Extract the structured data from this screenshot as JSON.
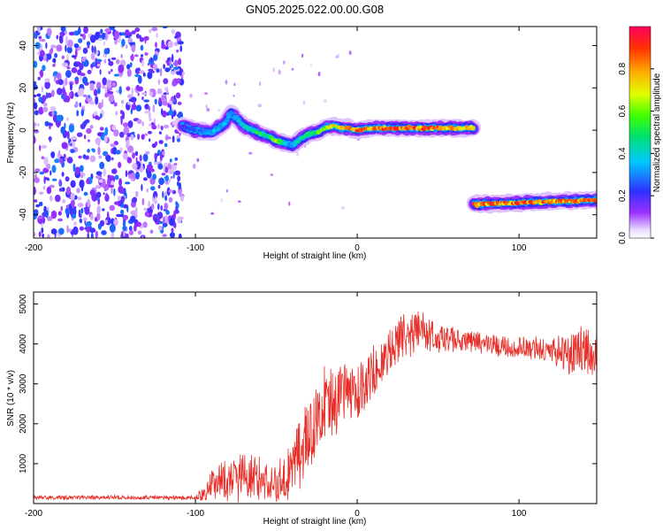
{
  "title": "GN05.2025.022.00.00.G08",
  "chart_data": [
    {
      "type": "heatmap",
      "xlabel": "Height of straight line (km)",
      "ylabel": "Frequency (Hz)",
      "xlim": [
        -200,
        148
      ],
      "ylim": [
        -51,
        49
      ],
      "x_ticks": [
        -200,
        -100,
        0,
        100
      ],
      "y_ticks": [
        -40,
        -20,
        0,
        20,
        40
      ],
      "colorbar": {
        "label": "Normalized spectral amplitude",
        "range": [
          0,
          1
        ],
        "ticks": [
          0.0,
          0.2,
          0.4,
          0.6,
          0.8
        ],
        "colormap": "rainbow (white-violet-blue-cyan-green-yellow-orange-red)"
      },
      "noise_region": {
        "x_range": [
          -200,
          -108
        ],
        "y_range": [
          -51,
          49
        ],
        "amplitude": [
          0.05,
          0.3
        ]
      },
      "ridge": {
        "x": [
          -108,
          -100,
          -90,
          -82,
          -78,
          -70,
          -62,
          -55,
          -50,
          -45,
          -40,
          -35,
          -30,
          -25,
          -20,
          -15,
          -10,
          -5,
          0,
          10,
          20,
          30,
          40,
          50,
          60,
          72
        ],
        "frequency": [
          2,
          0,
          -1,
          3,
          8,
          2,
          -1,
          -3,
          -5,
          -6,
          -7,
          -4,
          -2,
          -1,
          1,
          2,
          1,
          1,
          0,
          1,
          1,
          1,
          1,
          1,
          1,
          1
        ],
        "amplitude": [
          0.2,
          0.3,
          0.35,
          0.4,
          0.3,
          0.45,
          0.55,
          0.5,
          0.7,
          0.45,
          0.35,
          0.5,
          0.55,
          0.6,
          0.7,
          0.75,
          0.8,
          0.85,
          0.9,
          0.9,
          0.95,
          0.9,
          0.95,
          0.9,
          0.85,
          0.8
        ]
      },
      "ridge2": {
        "x": [
          72,
          148
        ],
        "frequency": [
          -35,
          -33
        ],
        "amplitude": [
          0.9,
          0.9
        ]
      }
    },
    {
      "type": "line",
      "xlabel": "Height of straight line (km)",
      "ylabel": "SNR (10 * v/v)",
      "xlim": [
        -200,
        148
      ],
      "ylim": [
        0,
        5300
      ],
      "x_ticks": [
        -200,
        -100,
        0,
        100
      ],
      "y_ticks": [
        1000,
        2000,
        3000,
        4000,
        5000
      ],
      "series": [
        {
          "color": "#e8302a",
          "envelope_x": [
            -200,
            -100,
            -95,
            -90,
            -80,
            -70,
            -60,
            -50,
            -40,
            -30,
            -20,
            -10,
            0,
            10,
            20,
            30,
            40,
            50,
            60,
            80,
            100,
            120,
            130,
            140,
            148
          ],
          "mean": [
            150,
            150,
            250,
            500,
            600,
            700,
            650,
            500,
            900,
            1800,
            2400,
            2700,
            2900,
            3300,
            3800,
            4300,
            4300,
            4150,
            4100,
            4000,
            3900,
            3850,
            3800,
            3800,
            3800
          ],
          "spread": [
            60,
            60,
            200,
            450,
            600,
            650,
            650,
            600,
            900,
            1100,
            1000,
            900,
            800,
            700,
            650,
            650,
            600,
            450,
            350,
            300,
            300,
            350,
            600,
            700,
            700
          ]
        }
      ]
    }
  ]
}
